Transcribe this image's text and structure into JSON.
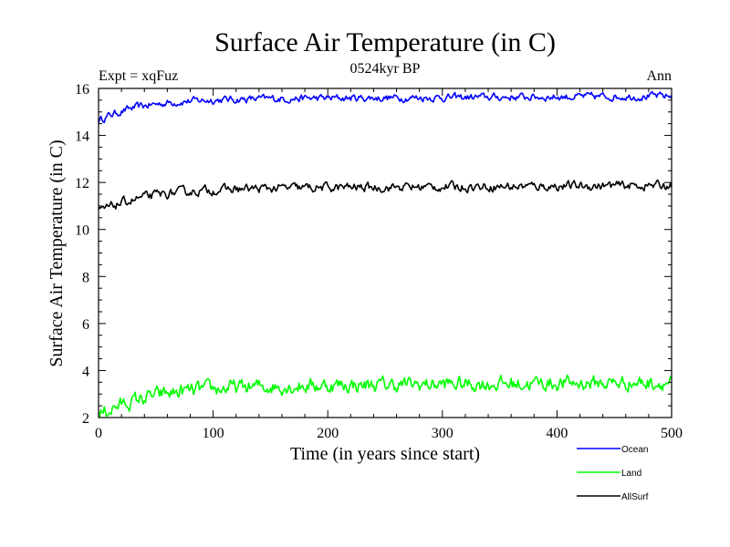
{
  "chart_data": {
    "type": "line",
    "title": "Surface Air Temperature (in C)",
    "subtitle": "0524kyr BP",
    "expt_label": "Expt = xqFuz",
    "season_label": "Ann",
    "xlabel": "Time (in years since start)",
    "ylabel": "Surface Air Temperature (in C)",
    "xlim": [
      0,
      500
    ],
    "ylim": [
      2,
      16
    ],
    "xticks": [
      0,
      100,
      200,
      300,
      400,
      500
    ],
    "yticks": [
      2,
      4,
      6,
      8,
      10,
      12,
      14,
      16
    ],
    "grid": false,
    "legend_position": "bottom-right",
    "series": [
      {
        "name": "Ocean",
        "color": "#0000ff",
        "start": 14.7,
        "plateau": 15.6,
        "tau": 35,
        "noise": 0.1,
        "x": [
          0,
          50,
          100,
          150,
          200,
          250,
          300,
          350,
          400,
          450,
          500
        ],
        "values": [
          14.7,
          15.3,
          15.4,
          15.4,
          15.5,
          15.5,
          15.6,
          15.6,
          15.6,
          15.6,
          15.6
        ]
      },
      {
        "name": "Land",
        "color": "#00ff00",
        "start": 2.2,
        "plateau": 3.4,
        "tau": 45,
        "noise": 0.2,
        "x": [
          0,
          50,
          100,
          150,
          200,
          250,
          300,
          350,
          400,
          450,
          500
        ],
        "values": [
          2.2,
          3.0,
          3.1,
          3.2,
          3.2,
          3.3,
          3.4,
          3.4,
          3.5,
          3.5,
          3.4
        ]
      },
      {
        "name": "AllSurf",
        "color": "#000000",
        "start": 10.8,
        "plateau": 11.8,
        "tau": 40,
        "noise": 0.12,
        "x": [
          0,
          50,
          100,
          150,
          200,
          250,
          300,
          350,
          400,
          450,
          500
        ],
        "values": [
          10.8,
          11.5,
          11.6,
          11.6,
          11.7,
          11.7,
          11.8,
          11.8,
          11.9,
          11.8,
          11.8
        ]
      }
    ]
  }
}
